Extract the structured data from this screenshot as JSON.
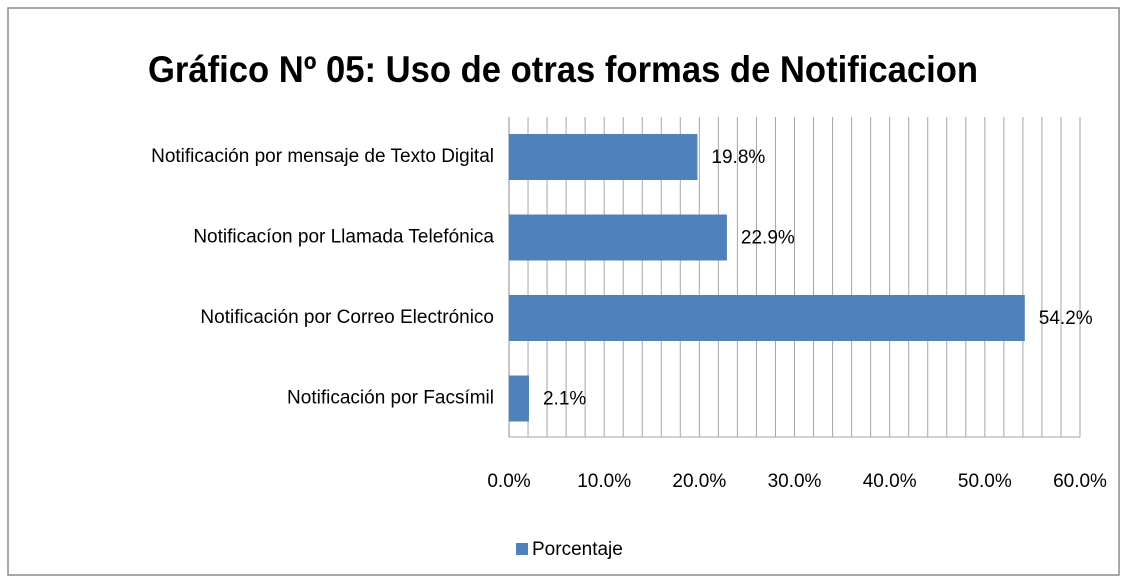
{
  "chart_data": {
    "type": "barh",
    "title": "Gráfico Nº 05: Uso de otras formas de Notificacion",
    "categories": [
      "Notificación por mensaje de Texto Digital",
      "Notificacíon por Llamada Telefónica",
      "Notificación por Correo Electrónico",
      "Notificación por Facsímil"
    ],
    "series": [
      {
        "name": "Porcentaje",
        "color": "#4f81bd",
        "values": [
          19.8,
          22.9,
          54.2,
          2.1
        ],
        "value_labels": [
          "19.8%",
          "22.9%",
          "54.2%",
          "2.1%"
        ]
      }
    ],
    "xlim": [
      0,
      60
    ],
    "xticks": [
      {
        "value": 0,
        "label": "0.0%"
      },
      {
        "value": 10,
        "label": "10.0%"
      },
      {
        "value": 20,
        "label": "20.0%"
      },
      {
        "value": 30,
        "label": "30.0%"
      },
      {
        "value": 40,
        "label": "40.0%"
      },
      {
        "value": 50,
        "label": "50.0%"
      },
      {
        "value": 60,
        "label": "60.0%"
      }
    ],
    "xgrid": [
      0,
      2,
      4,
      6,
      8,
      10,
      12,
      14,
      16,
      18,
      20,
      22,
      24,
      26,
      28,
      30,
      32,
      34,
      36,
      38,
      40,
      42,
      44,
      46,
      48,
      50,
      52,
      54,
      56,
      58,
      60
    ],
    "grid": true,
    "legend": "bottom"
  }
}
